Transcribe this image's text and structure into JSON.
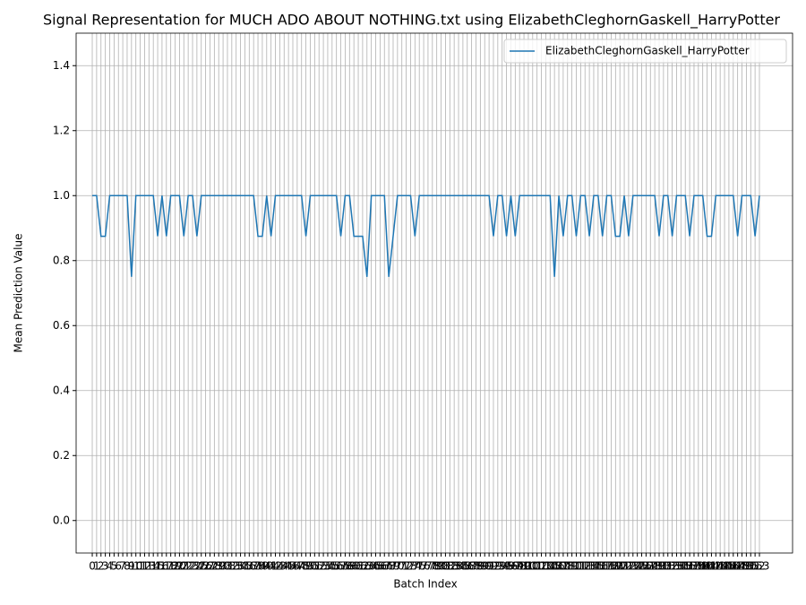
{
  "chart_data": {
    "type": "line",
    "title": "Signal Representation for MUCH ADO ABOUT NOTHING.txt using ElizabethCleghornGaskell_HarryPotter",
    "x_label": "Batch Index",
    "y_label": "Mean Prediction Value",
    "x": [
      0,
      1,
      2,
      3,
      4,
      5,
      6,
      7,
      8,
      9,
      10,
      11,
      12,
      13,
      14,
      15,
      16,
      17,
      18,
      19,
      20,
      21,
      22,
      23,
      24,
      25,
      26,
      27,
      28,
      29,
      30,
      31,
      32,
      33,
      34,
      35,
      36,
      37,
      38,
      39,
      40,
      41,
      42,
      43,
      44,
      45,
      46,
      47,
      48,
      49,
      50,
      51,
      52,
      53,
      54,
      55,
      56,
      57,
      58,
      59,
      60,
      61,
      62,
      63,
      64,
      65,
      66,
      67,
      68,
      69,
      70,
      71,
      72,
      73,
      74,
      75,
      76,
      77,
      78,
      79,
      80,
      81,
      82,
      83,
      84,
      85,
      86,
      87,
      88,
      89,
      90,
      91,
      92,
      93,
      94,
      95,
      96,
      97,
      98,
      99,
      100,
      101,
      102,
      103,
      104,
      105,
      106,
      107,
      108,
      109,
      110,
      111,
      112,
      113,
      114,
      115,
      116,
      117,
      118,
      119,
      120,
      121,
      122,
      123,
      124,
      125,
      126,
      127,
      128,
      129,
      130,
      131,
      132,
      133,
      134,
      135,
      136,
      137,
      138,
      139,
      140,
      141,
      142,
      143,
      144,
      145,
      146,
      147,
      148,
      149,
      150,
      151,
      152,
      153
    ],
    "series": [
      {
        "name": "ElizabethCleghornGaskell_HarryPotter",
        "color": "#1f77b4",
        "values": [
          1,
          1,
          0.875,
          0.875,
          1,
          1,
          1,
          1,
          1,
          0.75,
          1,
          1,
          1,
          1,
          1,
          0.875,
          1,
          0.875,
          1,
          1,
          1,
          0.875,
          1,
          1,
          0.875,
          1,
          1,
          1,
          1,
          1,
          1,
          1,
          1,
          1,
          1,
          1,
          1,
          1,
          0.875,
          0.875,
          1,
          0.875,
          1,
          1,
          1,
          1,
          1,
          1,
          1,
          0.875,
          1,
          1,
          1,
          1,
          1,
          1,
          1,
          0.875,
          1,
          1,
          0.875,
          0.875,
          0.875,
          0.75,
          1,
          1,
          1,
          1,
          0.75,
          0.875,
          1,
          1,
          1,
          1,
          0.875,
          1,
          1,
          1,
          1,
          1,
          1,
          1,
          1,
          1,
          1,
          1,
          1,
          1,
          1,
          1,
          1,
          1,
          0.875,
          1,
          1,
          0.875,
          1,
          0.875,
          1,
          1,
          1,
          1,
          1,
          1,
          1,
          1,
          0.75,
          1,
          0.875,
          1,
          1,
          0.875,
          1,
          1,
          0.875,
          1,
          1,
          0.875,
          1,
          1,
          0.875,
          0.875,
          1,
          0.875,
          1,
          1,
          1,
          1,
          1,
          1,
          0.875,
          1,
          1,
          0.875,
          1,
          1,
          1,
          0.875,
          1,
          1,
          1,
          0.875,
          0.875,
          1,
          1,
          1,
          1,
          1,
          0.875,
          1,
          1,
          1,
          0.875,
          1
        ]
      }
    ],
    "xlim": [
      -3.7,
      160.6
    ],
    "ylim": [
      -0.1,
      1.5
    ],
    "xticks": [
      0,
      1,
      2,
      3,
      4,
      5,
      6,
      7,
      8,
      9,
      10,
      11,
      12,
      13,
      14,
      15,
      16,
      17,
      18,
      19,
      20,
      21,
      22,
      23,
      24,
      25,
      26,
      27,
      28,
      29,
      30,
      31,
      32,
      33,
      34,
      35,
      36,
      37,
      38,
      39,
      40,
      41,
      42,
      43,
      44,
      45,
      46,
      47,
      48,
      49,
      50,
      51,
      52,
      53,
      54,
      55,
      56,
      57,
      58,
      59,
      60,
      61,
      62,
      63,
      64,
      65,
      66,
      67,
      68,
      69,
      70,
      71,
      72,
      73,
      74,
      75,
      76,
      77,
      78,
      79,
      80,
      81,
      82,
      83,
      84,
      85,
      86,
      87,
      88,
      89,
      90,
      91,
      92,
      93,
      94,
      95,
      96,
      97,
      98,
      99,
      100,
      101,
      102,
      103,
      104,
      105,
      106,
      107,
      108,
      109,
      110,
      111,
      112,
      113,
      114,
      115,
      116,
      117,
      118,
      119,
      120,
      121,
      122,
      123,
      124,
      125,
      126,
      127,
      128,
      129,
      130,
      131,
      132,
      133,
      134,
      135,
      136,
      137,
      138,
      139,
      140,
      141,
      142,
      143,
      144,
      145,
      146,
      147,
      148,
      149,
      150,
      151,
      152,
      153
    ],
    "yticks": [
      {
        "value": 0,
        "label": "0.0"
      },
      0.2,
      0.4,
      0.6,
      0.8,
      {
        "value": 1,
        "label": "1.0"
      },
      1.2,
      1.4
    ],
    "grid": true,
    "legend": "upper right"
  }
}
